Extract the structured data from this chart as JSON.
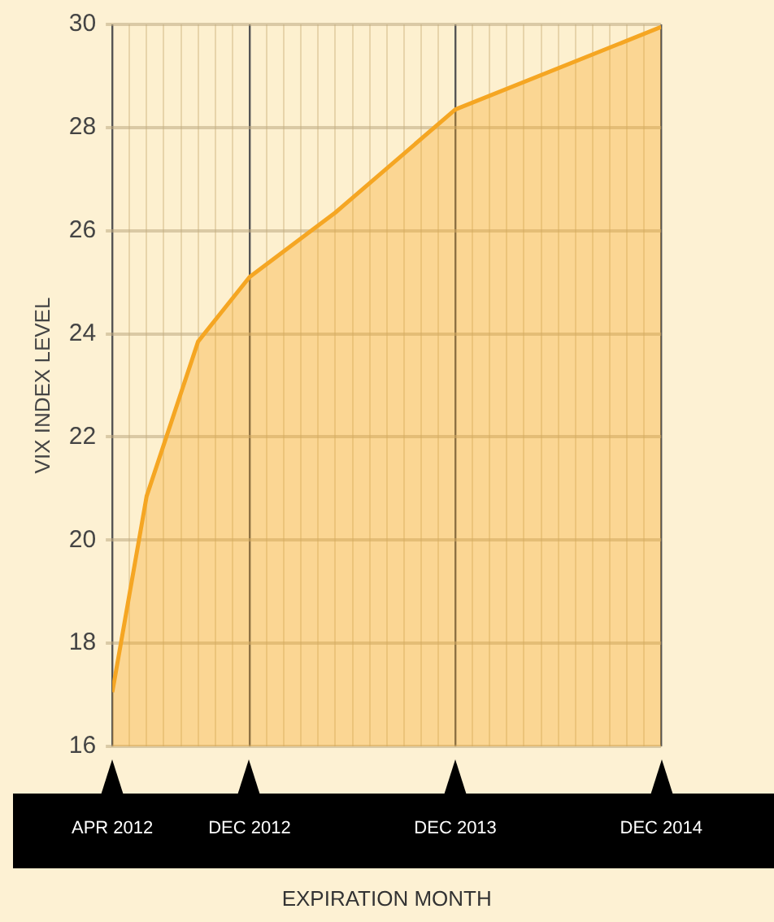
{
  "chart_data": {
    "type": "area",
    "xlabel": "EXPIRATION MONTH",
    "ylabel": "VIX INDEX LEVEL",
    "x": [
      "2012-04",
      "2012-06",
      "2012-09",
      "2012-12",
      "2013-05",
      "2013-12",
      "2014-12"
    ],
    "series": [
      {
        "color": "#f5a623",
        "values": [
          17.05,
          20.85,
          23.85,
          25.1,
          26.35,
          28.35,
          29.95
        ]
      }
    ],
    "xlim": [
      "2012-04",
      "2014-12"
    ],
    "xticks": [
      {
        "value": "2012-04",
        "label": "APR 2012"
      },
      {
        "value": "2012-05",
        "label": null
      },
      {
        "value": "2012-06",
        "label": null
      },
      {
        "value": "2012-07",
        "label": null
      },
      {
        "value": "2012-08",
        "label": null
      },
      {
        "value": "2012-09",
        "label": null
      },
      {
        "value": "2012-10",
        "label": null
      },
      {
        "value": "2012-11",
        "label": null
      },
      {
        "value": "2012-12",
        "label": "DEC 2012"
      },
      {
        "value": "2013-01",
        "label": null
      },
      {
        "value": "2013-02",
        "label": null
      },
      {
        "value": "2013-03",
        "label": null
      },
      {
        "value": "2013-04",
        "label": null
      },
      {
        "value": "2013-05",
        "label": null
      },
      {
        "value": "2013-06",
        "label": null
      },
      {
        "value": "2013-07",
        "label": null
      },
      {
        "value": "2013-08",
        "label": null
      },
      {
        "value": "2013-09",
        "label": null
      },
      {
        "value": "2013-10",
        "label": null
      },
      {
        "value": "2013-11",
        "label": null
      },
      {
        "value": "2013-12",
        "label": "DEC 2013"
      },
      {
        "value": "2014-01",
        "label": null
      },
      {
        "value": "2014-02",
        "label": null
      },
      {
        "value": "2014-03",
        "label": null
      },
      {
        "value": "2014-04",
        "label": null
      },
      {
        "value": "2014-05",
        "label": null
      },
      {
        "value": "2014-06",
        "label": null
      },
      {
        "value": "2014-07",
        "label": null
      },
      {
        "value": "2014-08",
        "label": null
      },
      {
        "value": "2014-09",
        "label": null
      },
      {
        "value": "2014-10",
        "label": null
      },
      {
        "value": "2014-11",
        "label": null
      },
      {
        "value": "2014-12",
        "label": "DEC 2014"
      }
    ],
    "ylim": [
      16,
      30
    ],
    "yticks": [
      16,
      18,
      20,
      22,
      24,
      26,
      28,
      30
    ],
    "grid": true,
    "legend": false
  }
}
